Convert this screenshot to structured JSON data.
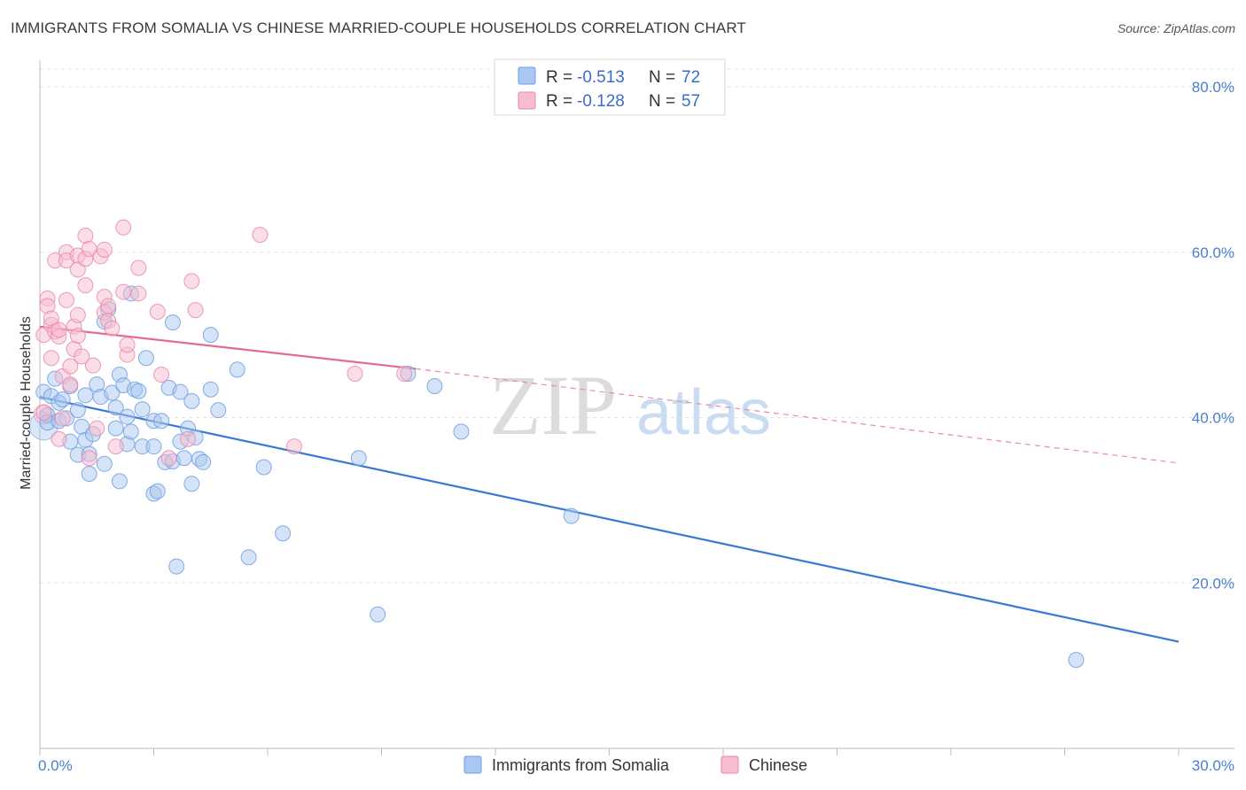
{
  "title": "IMMIGRANTS FROM SOMALIA VS CHINESE MARRIED-COUPLE HOUSEHOLDS CORRELATION CHART",
  "source": "Source: ZipAtlas.com",
  "watermark": {
    "zip": "ZIP",
    "atlas": "atlas"
  },
  "legend": [
    {
      "r_label": "R =",
      "r_value": "-0.513",
      "n_label": "N =",
      "n_value": "72",
      "color": "#a9c7f0",
      "edge": "#6f9fe0"
    },
    {
      "r_label": "R =",
      "r_value": "-0.128",
      "n_label": "N =",
      "n_value": "57",
      "color": "#f7bcd0",
      "edge": "#e98aaa"
    }
  ],
  "bottom_legend": [
    {
      "label": "Immigrants from Somalia",
      "color": "#a9c7f0",
      "edge": "#6f9fe0"
    },
    {
      "label": "Chinese",
      "color": "#f7bcd0",
      "edge": "#e98aaa"
    }
  ],
  "chart_data": {
    "type": "scatter",
    "title": "IMMIGRANTS FROM SOMALIA VS CHINESE MARRIED-COUPLE HOUSEHOLDS CORRELATION CHART",
    "xlabel": "",
    "ylabel": "Married-couple Households",
    "xlim": [
      0,
      30
    ],
    "ylim": [
      0,
      80
    ],
    "x_tick_labels": [
      "0.0%",
      "30.0%"
    ],
    "y_ticks": [
      20,
      40,
      60,
      80
    ],
    "y_tick_labels": [
      "20.0%",
      "40.0%",
      "60.0%",
      "80.0%"
    ],
    "grid": true,
    "series": [
      {
        "name": "Immigrants from Somalia",
        "color": "#6f9fe0",
        "fill": "#a9c7f0",
        "trend": {
          "x": [
            0,
            30
          ],
          "y": [
            42.5,
            12.9
          ],
          "style": "solid"
        },
        "points": [
          [
            0.1,
            43.1
          ],
          [
            0.2,
            40.3
          ],
          [
            0.2,
            39.4
          ],
          [
            0.3,
            42.6
          ],
          [
            0.4,
            44.7
          ],
          [
            0.5,
            41.8
          ],
          [
            0.5,
            39.6
          ],
          [
            0.6,
            42.2
          ],
          [
            0.7,
            39.9
          ],
          [
            0.8,
            37.1
          ],
          [
            0.8,
            43.8
          ],
          [
            1.0,
            35.5
          ],
          [
            1.0,
            40.9
          ],
          [
            1.1,
            38.9
          ],
          [
            1.2,
            42.7
          ],
          [
            1.2,
            37.3
          ],
          [
            1.3,
            35.6
          ],
          [
            1.3,
            33.2
          ],
          [
            1.4,
            38.0
          ],
          [
            1.5,
            44.0
          ],
          [
            1.6,
            42.5
          ],
          [
            1.7,
            51.6
          ],
          [
            1.7,
            34.4
          ],
          [
            1.8,
            53.1
          ],
          [
            1.9,
            43.0
          ],
          [
            2.0,
            41.2
          ],
          [
            2.0,
            38.7
          ],
          [
            2.1,
            45.2
          ],
          [
            2.1,
            32.3
          ],
          [
            2.2,
            43.9
          ],
          [
            2.3,
            36.8
          ],
          [
            2.3,
            40.1
          ],
          [
            2.4,
            38.3
          ],
          [
            2.4,
            55.0
          ],
          [
            2.5,
            43.4
          ],
          [
            2.6,
            43.2
          ],
          [
            2.7,
            36.5
          ],
          [
            2.7,
            41.0
          ],
          [
            2.8,
            47.2
          ],
          [
            3.0,
            36.5
          ],
          [
            3.0,
            39.6
          ],
          [
            3.0,
            30.8
          ],
          [
            3.1,
            31.1
          ],
          [
            3.2,
            39.6
          ],
          [
            3.3,
            34.6
          ],
          [
            3.4,
            43.6
          ],
          [
            3.5,
            51.5
          ],
          [
            3.5,
            34.7
          ],
          [
            3.6,
            22.0
          ],
          [
            3.7,
            43.1
          ],
          [
            3.7,
            37.1
          ],
          [
            3.8,
            35.1
          ],
          [
            3.9,
            38.7
          ],
          [
            4.0,
            42.0
          ],
          [
            4.0,
            32.0
          ],
          [
            4.1,
            37.6
          ],
          [
            4.2,
            35.0
          ],
          [
            4.3,
            34.6
          ],
          [
            4.5,
            43.4
          ],
          [
            4.5,
            50.0
          ],
          [
            4.7,
            40.9
          ],
          [
            5.2,
            45.8
          ],
          [
            5.5,
            23.1
          ],
          [
            5.9,
            34.0
          ],
          [
            6.4,
            26.0
          ],
          [
            8.4,
            35.1
          ],
          [
            8.9,
            16.2
          ],
          [
            9.7,
            45.3
          ],
          [
            10.4,
            43.8
          ],
          [
            11.1,
            38.3
          ],
          [
            14.0,
            28.1
          ],
          [
            27.3,
            10.7
          ]
        ]
      },
      {
        "name": "Chinese",
        "color": "#e98aaa",
        "fill": "#f7bcd0",
        "trend": {
          "x": [
            0,
            9.9
          ],
          "y": [
            51.0,
            45.9
          ],
          "style": "solid",
          "extended": {
            "x": [
              9.9,
              30
            ],
            "y": [
              45.9,
              34.5
            ],
            "style": "dashed"
          }
        },
        "points": [
          [
            0.1,
            50.0
          ],
          [
            0.1,
            40.6
          ],
          [
            0.2,
            54.4
          ],
          [
            0.2,
            53.5
          ],
          [
            0.3,
            51.2
          ],
          [
            0.3,
            47.2
          ],
          [
            0.3,
            52.0
          ],
          [
            0.4,
            50.4
          ],
          [
            0.4,
            59.0
          ],
          [
            0.5,
            49.8
          ],
          [
            0.5,
            37.4
          ],
          [
            0.5,
            50.6
          ],
          [
            0.6,
            45.0
          ],
          [
            0.6,
            39.9
          ],
          [
            0.7,
            60.0
          ],
          [
            0.7,
            59.0
          ],
          [
            0.7,
            54.2
          ],
          [
            0.8,
            44.0
          ],
          [
            0.8,
            46.2
          ],
          [
            0.9,
            48.3
          ],
          [
            0.9,
            51.0
          ],
          [
            1.0,
            59.6
          ],
          [
            1.0,
            52.4
          ],
          [
            1.0,
            49.9
          ],
          [
            1.0,
            57.9
          ],
          [
            1.1,
            47.4
          ],
          [
            1.2,
            62.0
          ],
          [
            1.2,
            56.0
          ],
          [
            1.2,
            59.2
          ],
          [
            1.3,
            60.4
          ],
          [
            1.3,
            35.1
          ],
          [
            1.4,
            46.3
          ],
          [
            1.5,
            38.7
          ],
          [
            1.6,
            59.5
          ],
          [
            1.7,
            60.3
          ],
          [
            1.7,
            52.7
          ],
          [
            1.7,
            54.6
          ],
          [
            1.8,
            51.7
          ],
          [
            1.8,
            53.5
          ],
          [
            1.9,
            50.8
          ],
          [
            2.0,
            36.5
          ],
          [
            2.2,
            55.2
          ],
          [
            2.2,
            63.0
          ],
          [
            2.3,
            47.6
          ],
          [
            2.3,
            48.8
          ],
          [
            2.6,
            55.0
          ],
          [
            2.6,
            58.1
          ],
          [
            3.1,
            52.8
          ],
          [
            3.2,
            45.2
          ],
          [
            3.4,
            35.1
          ],
          [
            3.9,
            37.4
          ],
          [
            4.0,
            56.5
          ],
          [
            4.1,
            53.0
          ],
          [
            5.8,
            62.1
          ],
          [
            6.7,
            36.5
          ],
          [
            8.3,
            45.3
          ],
          [
            9.6,
            45.3
          ]
        ]
      }
    ]
  }
}
